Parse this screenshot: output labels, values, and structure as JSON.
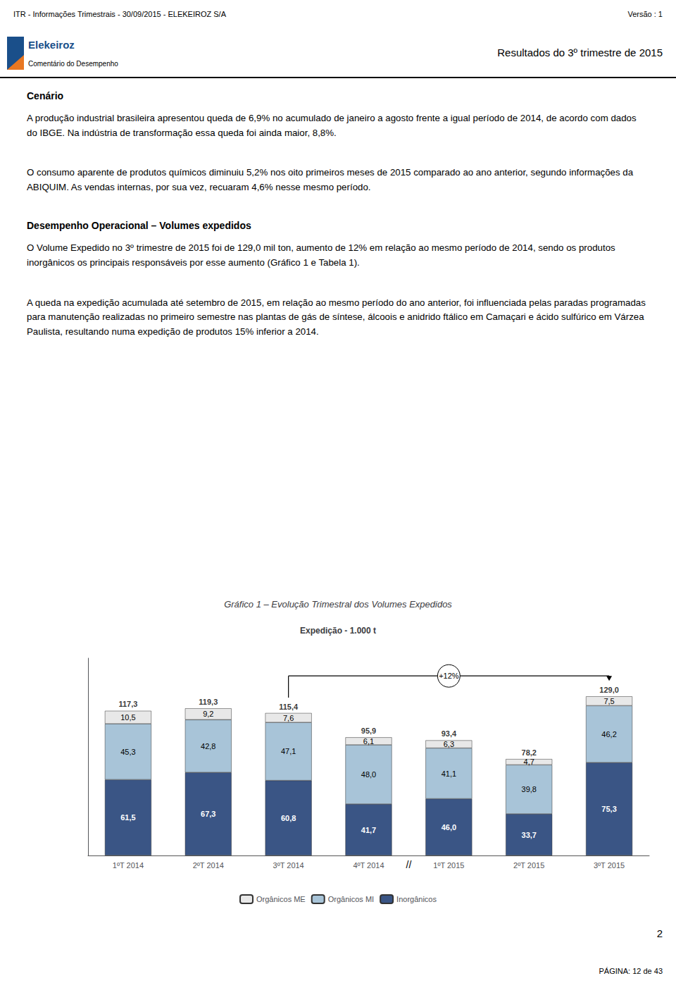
{
  "page": {
    "header_left": "ITR - Informações Trimestrais - 30/09/2015 - ELEKEIROZ S/A",
    "header_right": "Versão : 1",
    "brand": "Elekeiroz",
    "section_title": "Comentário do Desempenho",
    "section_subtitle": "Resultados do 3º trimestre de 2015",
    "sections": [
      {
        "heading": "Cenário",
        "paragraphs": [
          "A produção industrial brasileira apresentou queda de 6,9% no acumulado de janeiro a agosto frente a igual período de 2014, de acordo com dados do IBGE. Na indústria de transformação essa queda foi ainda maior, 8,8%.",
          "O consumo aparente de produtos químicos diminuiu 5,2% nos oito primeiros meses de 2015 comparado ao ano anterior, segundo informações da ABIQUIM. As vendas internas, por sua vez, recuaram 4,6% nesse mesmo período."
        ]
      },
      {
        "heading": "Desempenho Operacional – Volumes expedidos",
        "paragraphs": [
          "O Volume Expedido no 3º trimestre de 2015 foi de 129,0 mil ton, aumento de 12% em relação ao mesmo período de 2014, sendo os produtos inorgânicos os principais responsáveis por esse aumento (Gráfico 1 e Tabela 1).",
          "A queda na expedição acumulada até setembro de 2015, em relação ao mesmo período do ano anterior, foi influenciada pelas paradas programadas para manutenção realizadas no primeiro semestre nas plantas de gás de síntese, álcoois e anidrido ftálico em Camaçari e ácido sulfúrico em Várzea Paulista, resultando numa expedição de produtos 15% inferior a 2014."
        ]
      }
    ],
    "page_number": "2",
    "pagina_label": "PÁGINA: 12 de 43"
  },
  "chart_data": {
    "type": "bar",
    "title": "Gráfico 1 – Evolução Trimestral dos Volumes Expedidos",
    "subtitle": "Expedição - 1.000 t",
    "categories": [
      "1ºT 2014",
      "2ºT 2014",
      "3ºT 2014",
      "4ºT 2014",
      "1ºT 2015",
      "2ºT 2015",
      "3ºT 2015"
    ],
    "stacked": true,
    "data_labels": true,
    "series": [
      {
        "name": "Inorgânicos",
        "color": "#3a5585",
        "values": [
          61.5,
          67.3,
          60.8,
          41.7,
          46.0,
          33.7,
          75.3
        ],
        "value_labels": [
          "61,5",
          "67,3",
          "60,8",
          "41,7",
          "46,0",
          "33,7",
          "75,3"
        ]
      },
      {
        "name": "Orgânicos MI",
        "color": "#a8c4d8",
        "values": [
          45.3,
          42.8,
          47.1,
          48.0,
          41.1,
          39.8,
          46.2
        ],
        "value_labels": [
          "45,3",
          "42,8",
          "47,1",
          "48,0",
          "41,1",
          "39,8",
          "46,2"
        ]
      },
      {
        "name": "Orgânicos ME",
        "color": "#e8e8e8",
        "values": [
          10.5,
          9.2,
          7.6,
          6.1,
          6.3,
          4.7,
          7.5
        ],
        "value_labels": [
          "10,5",
          "9,2",
          "7,6",
          "6,1",
          "6,3",
          "4,7",
          "7,5"
        ]
      }
    ],
    "totals": {
      "values": [
        117.3,
        119.3,
        115.4,
        95.9,
        93.4,
        78.2,
        129.0
      ],
      "value_labels": [
        "117,3",
        "119,3",
        "115,4",
        "95,9",
        "93,4",
        "78,2",
        "129,0"
      ]
    },
    "annotations": [
      {
        "text": "+12%",
        "from": "3ºT 2014",
        "to": "3ºT 2015"
      },
      {
        "text": "//",
        "after": "4ºT 2014"
      }
    ],
    "ylim": [
      0,
      160
    ],
    "yticks": [],
    "tick_labels": "x",
    "grid": false,
    "legend": "bottom"
  }
}
